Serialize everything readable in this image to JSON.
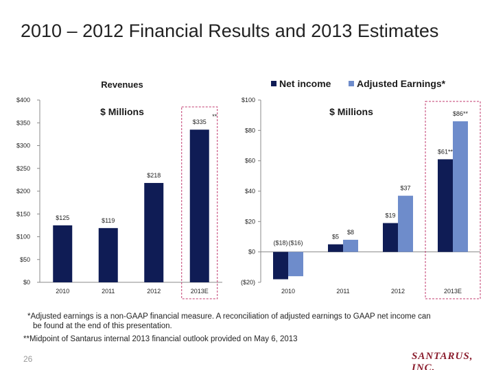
{
  "slide": {
    "title": "2010 – 2012 Financial Results and 2013 Estimates",
    "page_number": "26",
    "footnote_1": "*Adjusted earnings is a non-GAAP financial measure.  A reconciliation of adjusted earnings to GAAP net income can",
    "footnote_1b": "be found at the end of this presentation.",
    "footnote_2": "**Midpoint of Santarus internal 2013 financial outlook provided on May 6, 2013",
    "logo_text": "SANTARUS, INC."
  },
  "colors": {
    "net_income": "#0f1c55",
    "adjusted": "#6e8ccb",
    "highlight_box": "#c0396e",
    "axis": "#888888"
  },
  "chart_data": [
    {
      "type": "bar",
      "title": "Revenues",
      "subtitle": "$ Millions",
      "categories": [
        "2010",
        "2011",
        "2012",
        "2013E"
      ],
      "values": [
        125,
        119,
        218,
        335
      ],
      "data_labels": [
        "$125",
        "$119",
        "$218",
        "$335"
      ],
      "annotation": "**",
      "ylim": [
        0,
        400
      ],
      "ytick_values": [
        0,
        50,
        100,
        150,
        200,
        250,
        300,
        350,
        400
      ],
      "yticks": [
        "$0",
        "$50",
        "$100",
        "$150",
        "$200",
        "$250",
        "$300",
        "$350",
        "$400"
      ],
      "highlight_category": "2013E"
    },
    {
      "type": "bar",
      "subtitle": "$ Millions",
      "categories": [
        "2010",
        "2011",
        "2012",
        "2013E"
      ],
      "series": [
        {
          "name": "Net income",
          "values": [
            -18,
            5,
            19,
            61
          ],
          "labels": [
            "($18)",
            "$5",
            "$19",
            "$61**"
          ]
        },
        {
          "name": "Adjusted Earnings*",
          "values": [
            -16,
            8,
            37,
            86
          ],
          "labels": [
            "($16)",
            "$8",
            "$37",
            "$86**"
          ]
        }
      ],
      "ylim": [
        -20,
        100
      ],
      "ytick_values": [
        -20,
        0,
        20,
        40,
        60,
        80,
        100
      ],
      "yticks": [
        "($20)",
        "$0",
        "$20",
        "$40",
        "$60",
        "$80",
        "$100"
      ],
      "legend_position": "top",
      "highlight_category": "2013E"
    }
  ]
}
